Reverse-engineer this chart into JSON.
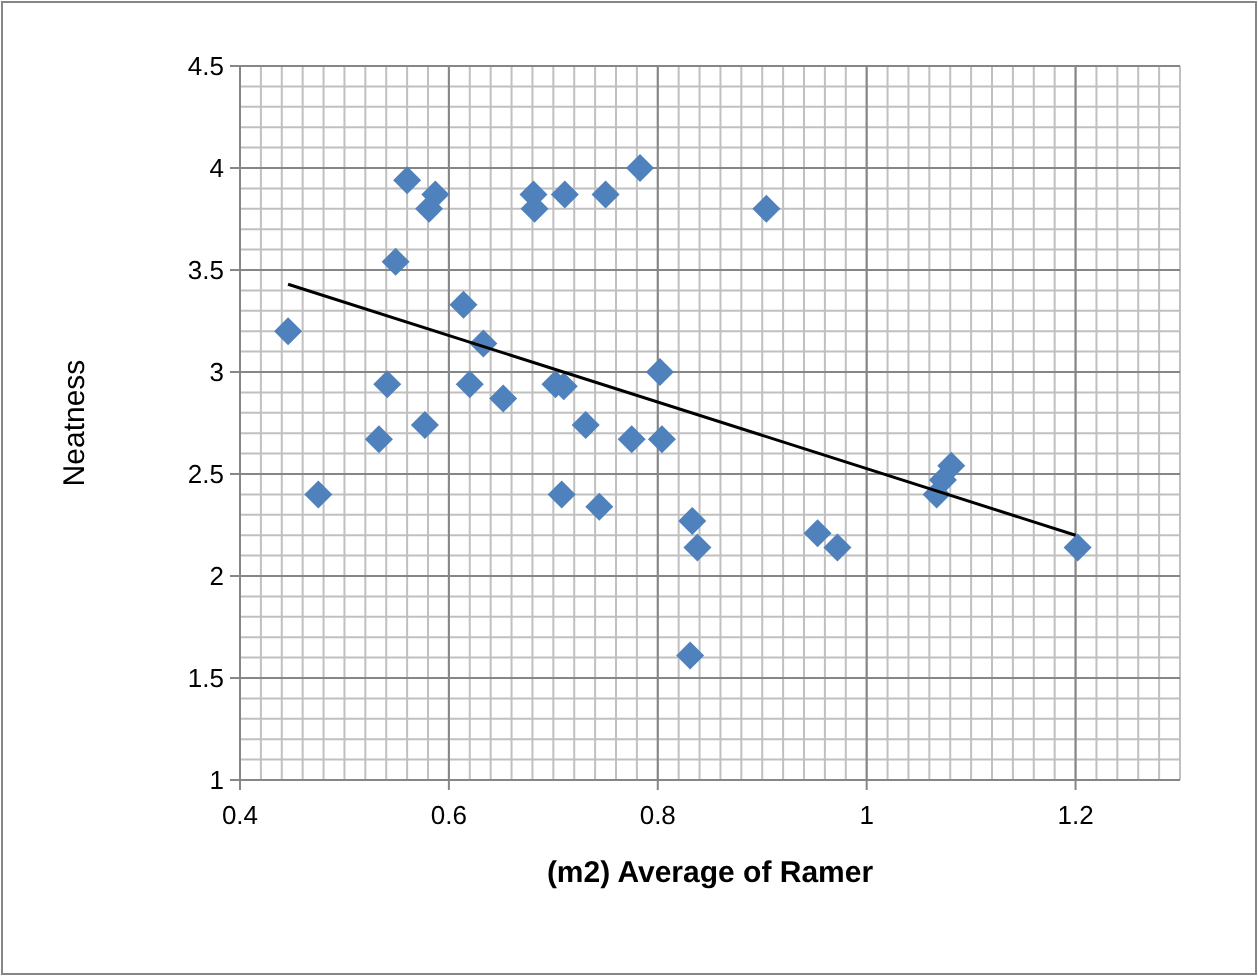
{
  "chart_data": {
    "type": "scatter",
    "xlabel": "(m2)  Average of Ramer",
    "ylabel": "Neatness",
    "xlim": [
      0.4,
      1.3
    ],
    "xticks": [
      0.4,
      0.6,
      0.8,
      1,
      1.2
    ],
    "ylim": [
      1,
      4.5
    ],
    "yticks": [
      1,
      1.5,
      2,
      2.5,
      3,
      3.5,
      4,
      4.5
    ],
    "grid": true,
    "marker": "diamond",
    "series": [
      {
        "color": "#4f81bd",
        "x": [
          0.446,
          0.475,
          0.533,
          0.577,
          0.652,
          0.731,
          0.775,
          0.804,
          0.708,
          0.744,
          0.833,
          0.838,
          0.831,
          0.953,
          0.972,
          1.067,
          1.073,
          1.081,
          1.202,
          0.56,
          0.587,
          0.581,
          0.549,
          0.681,
          0.682,
          0.711,
          0.75,
          0.783,
          0.614,
          0.633,
          0.541,
          0.62,
          0.702,
          0.71,
          0.802,
          0.904
        ],
        "values": [
          3.2,
          2.4,
          2.67,
          2.74,
          2.87,
          2.74,
          2.67,
          2.67,
          2.4,
          2.34,
          2.27,
          2.14,
          1.61,
          2.21,
          2.14,
          2.4,
          2.47,
          2.54,
          2.14,
          3.94,
          3.87,
          3.8,
          3.54,
          3.87,
          3.8,
          3.87,
          3.87,
          4.0,
          3.33,
          3.14,
          2.94,
          2.94,
          2.94,
          2.93,
          3.0,
          3.8
        ]
      },
      {
        "type": "line",
        "color": "#000000",
        "marker": "none",
        "x": [
          0.446,
          1.2
        ],
        "values": [
          3.43,
          2.2
        ]
      }
    ]
  }
}
